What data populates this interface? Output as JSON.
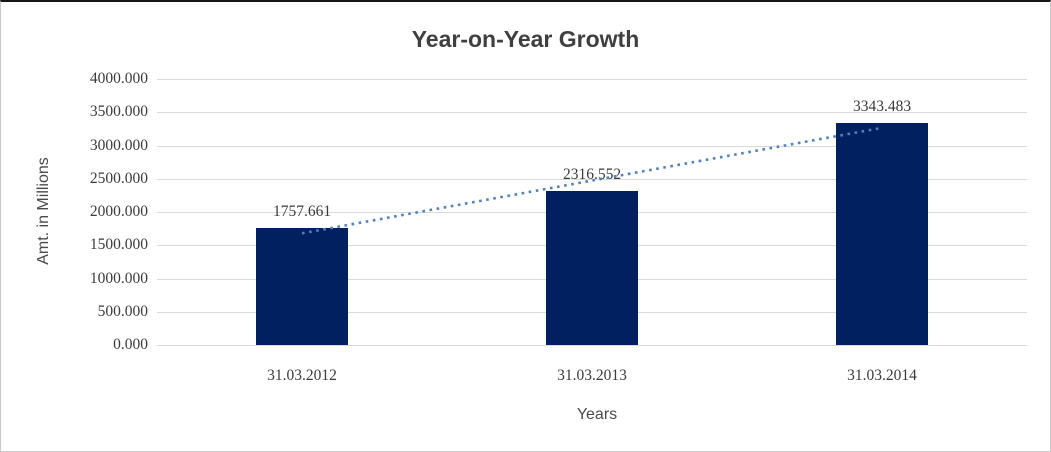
{
  "chart_data": {
    "type": "bar",
    "title": "Year-on-Year Growth",
    "categories": [
      "31.03.2012",
      "31.03.2013",
      "31.03.2014"
    ],
    "series": [
      {
        "name": "Amt. in Millions",
        "values": [
          1757.661,
          2316.552,
          3343.483
        ]
      }
    ],
    "data_labels": [
      "1757.661",
      "2316.552",
      "3343.483"
    ],
    "xlabel": "Years",
    "ylabel": "Amt. in Millions",
    "ylim": [
      0,
      4000
    ],
    "ytick_step": 500,
    "ytick_labels": [
      "0.000",
      "500.000",
      "1000.000",
      "1500.000",
      "2000.000",
      "2500.000",
      "3000.000",
      "3500.000",
      "4000.000"
    ],
    "grid": true,
    "legend": "none",
    "trendline": {
      "type": "linear",
      "style": "dotted"
    },
    "colors": {
      "bar": "#002060",
      "trendline": "#4f81bd",
      "gridline": "#d9d9d9",
      "title": "#3f3f3f",
      "tick_label": "#3a3a3a",
      "axis_title": "#4a4a4a"
    }
  }
}
